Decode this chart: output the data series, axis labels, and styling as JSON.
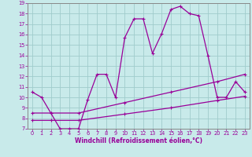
{
  "title": "",
  "xlabel": "Windchill (Refroidissement éolien,°C)",
  "bg_color": "#c8eaea",
  "line_color": "#990099",
  "grid_color": "#a0cccc",
  "spine_color": "#888888",
  "xlim": [
    -0.5,
    23.5
  ],
  "ylim": [
    7,
    19
  ],
  "xticks": [
    0,
    1,
    2,
    3,
    4,
    5,
    6,
    7,
    8,
    9,
    10,
    11,
    12,
    13,
    14,
    15,
    16,
    17,
    18,
    19,
    20,
    21,
    22,
    23
  ],
  "yticks": [
    7,
    8,
    9,
    10,
    11,
    12,
    13,
    14,
    15,
    16,
    17,
    18,
    19
  ],
  "curve1_x": [
    0,
    1,
    2,
    3,
    4,
    5,
    6,
    7,
    8,
    9,
    10,
    11,
    12,
    13,
    14,
    15,
    16,
    17,
    18,
    19,
    20,
    21,
    22,
    23
  ],
  "curve1_y": [
    10.5,
    10.0,
    8.5,
    7.0,
    7.0,
    7.0,
    9.8,
    12.2,
    12.2,
    10.0,
    15.7,
    17.5,
    17.5,
    14.2,
    16.1,
    18.4,
    18.7,
    18.0,
    17.8,
    14.0,
    10.0,
    10.0,
    11.5,
    10.5
  ],
  "curve2_x": [
    0,
    2,
    5,
    10,
    15,
    20,
    23
  ],
  "curve2_y": [
    8.5,
    8.5,
    8.5,
    9.5,
    10.5,
    11.5,
    12.2
  ],
  "curve3_x": [
    0,
    2,
    5,
    10,
    15,
    20,
    23
  ],
  "curve3_y": [
    7.8,
    7.8,
    7.8,
    8.4,
    9.0,
    9.7,
    10.1
  ],
  "xlabel_fontsize": 5.5,
  "tick_fontsize": 4.8,
  "linewidth": 0.9,
  "markersize": 2.5
}
